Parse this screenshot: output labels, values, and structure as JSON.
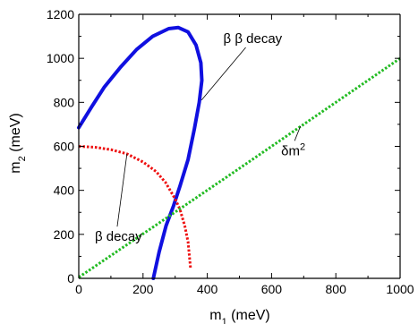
{
  "chart_data": {
    "type": "line",
    "xlabel": "m",
    "xlabel_sub": "1",
    "xlabel_unit": " (meV)",
    "ylabel": "m",
    "ylabel_sub": "2",
    "ylabel_unit": " (meV)",
    "xlim": [
      0,
      1000
    ],
    "ylim": [
      0,
      1200
    ],
    "x_ticks": [
      0,
      200,
      400,
      600,
      800,
      1000
    ],
    "y_ticks": [
      0,
      200,
      400,
      600,
      800,
      1000,
      1200
    ],
    "grid": false,
    "series": [
      {
        "color": "#1010e0",
        "style": "solid-thick",
        "points": [
          [
            0,
            685
          ],
          [
            40,
            780
          ],
          [
            80,
            870
          ],
          [
            130,
            960
          ],
          [
            180,
            1040
          ],
          [
            230,
            1100
          ],
          [
            280,
            1135
          ],
          [
            310,
            1140
          ],
          [
            340,
            1120
          ],
          [
            365,
            1060
          ],
          [
            380,
            980
          ],
          [
            383,
            900
          ],
          [
            375,
            800
          ],
          [
            360,
            680
          ],
          [
            340,
            540
          ],
          [
            315,
            420
          ],
          [
            295,
            330
          ],
          [
            272,
            240
          ],
          [
            250,
            120
          ],
          [
            232,
            0
          ]
        ]
      },
      {
        "color": "#ee1111",
        "style": "dotted",
        "points": [
          [
            0,
            600
          ],
          [
            50,
            596
          ],
          [
            100,
            585
          ],
          [
            150,
            566
          ],
          [
            200,
            529
          ],
          [
            240,
            486
          ],
          [
            270,
            436
          ],
          [
            300,
            361
          ],
          [
            315,
            313
          ],
          [
            330,
            237
          ],
          [
            340,
            166
          ],
          [
            348,
            45
          ]
        ]
      },
      {
        "color": "#22bb22",
        "style": "dotted",
        "points": [
          [
            0,
            5
          ],
          [
            250,
            252
          ],
          [
            500,
            500
          ],
          [
            750,
            750
          ],
          [
            1000,
            1000
          ]
        ]
      }
    ],
    "annotations": [
      {
        "text": "β β decay",
        "x": 450,
        "y": 1070,
        "target": [
          382,
          810
        ]
      },
      {
        "text": "β  decay",
        "x": 50,
        "y": 170,
        "target": [
          150,
          566
        ]
      },
      {
        "text": "δm",
        "sup": "2",
        "x": 630,
        "y": 560,
        "target": [
          690,
          692
        ]
      }
    ]
  }
}
